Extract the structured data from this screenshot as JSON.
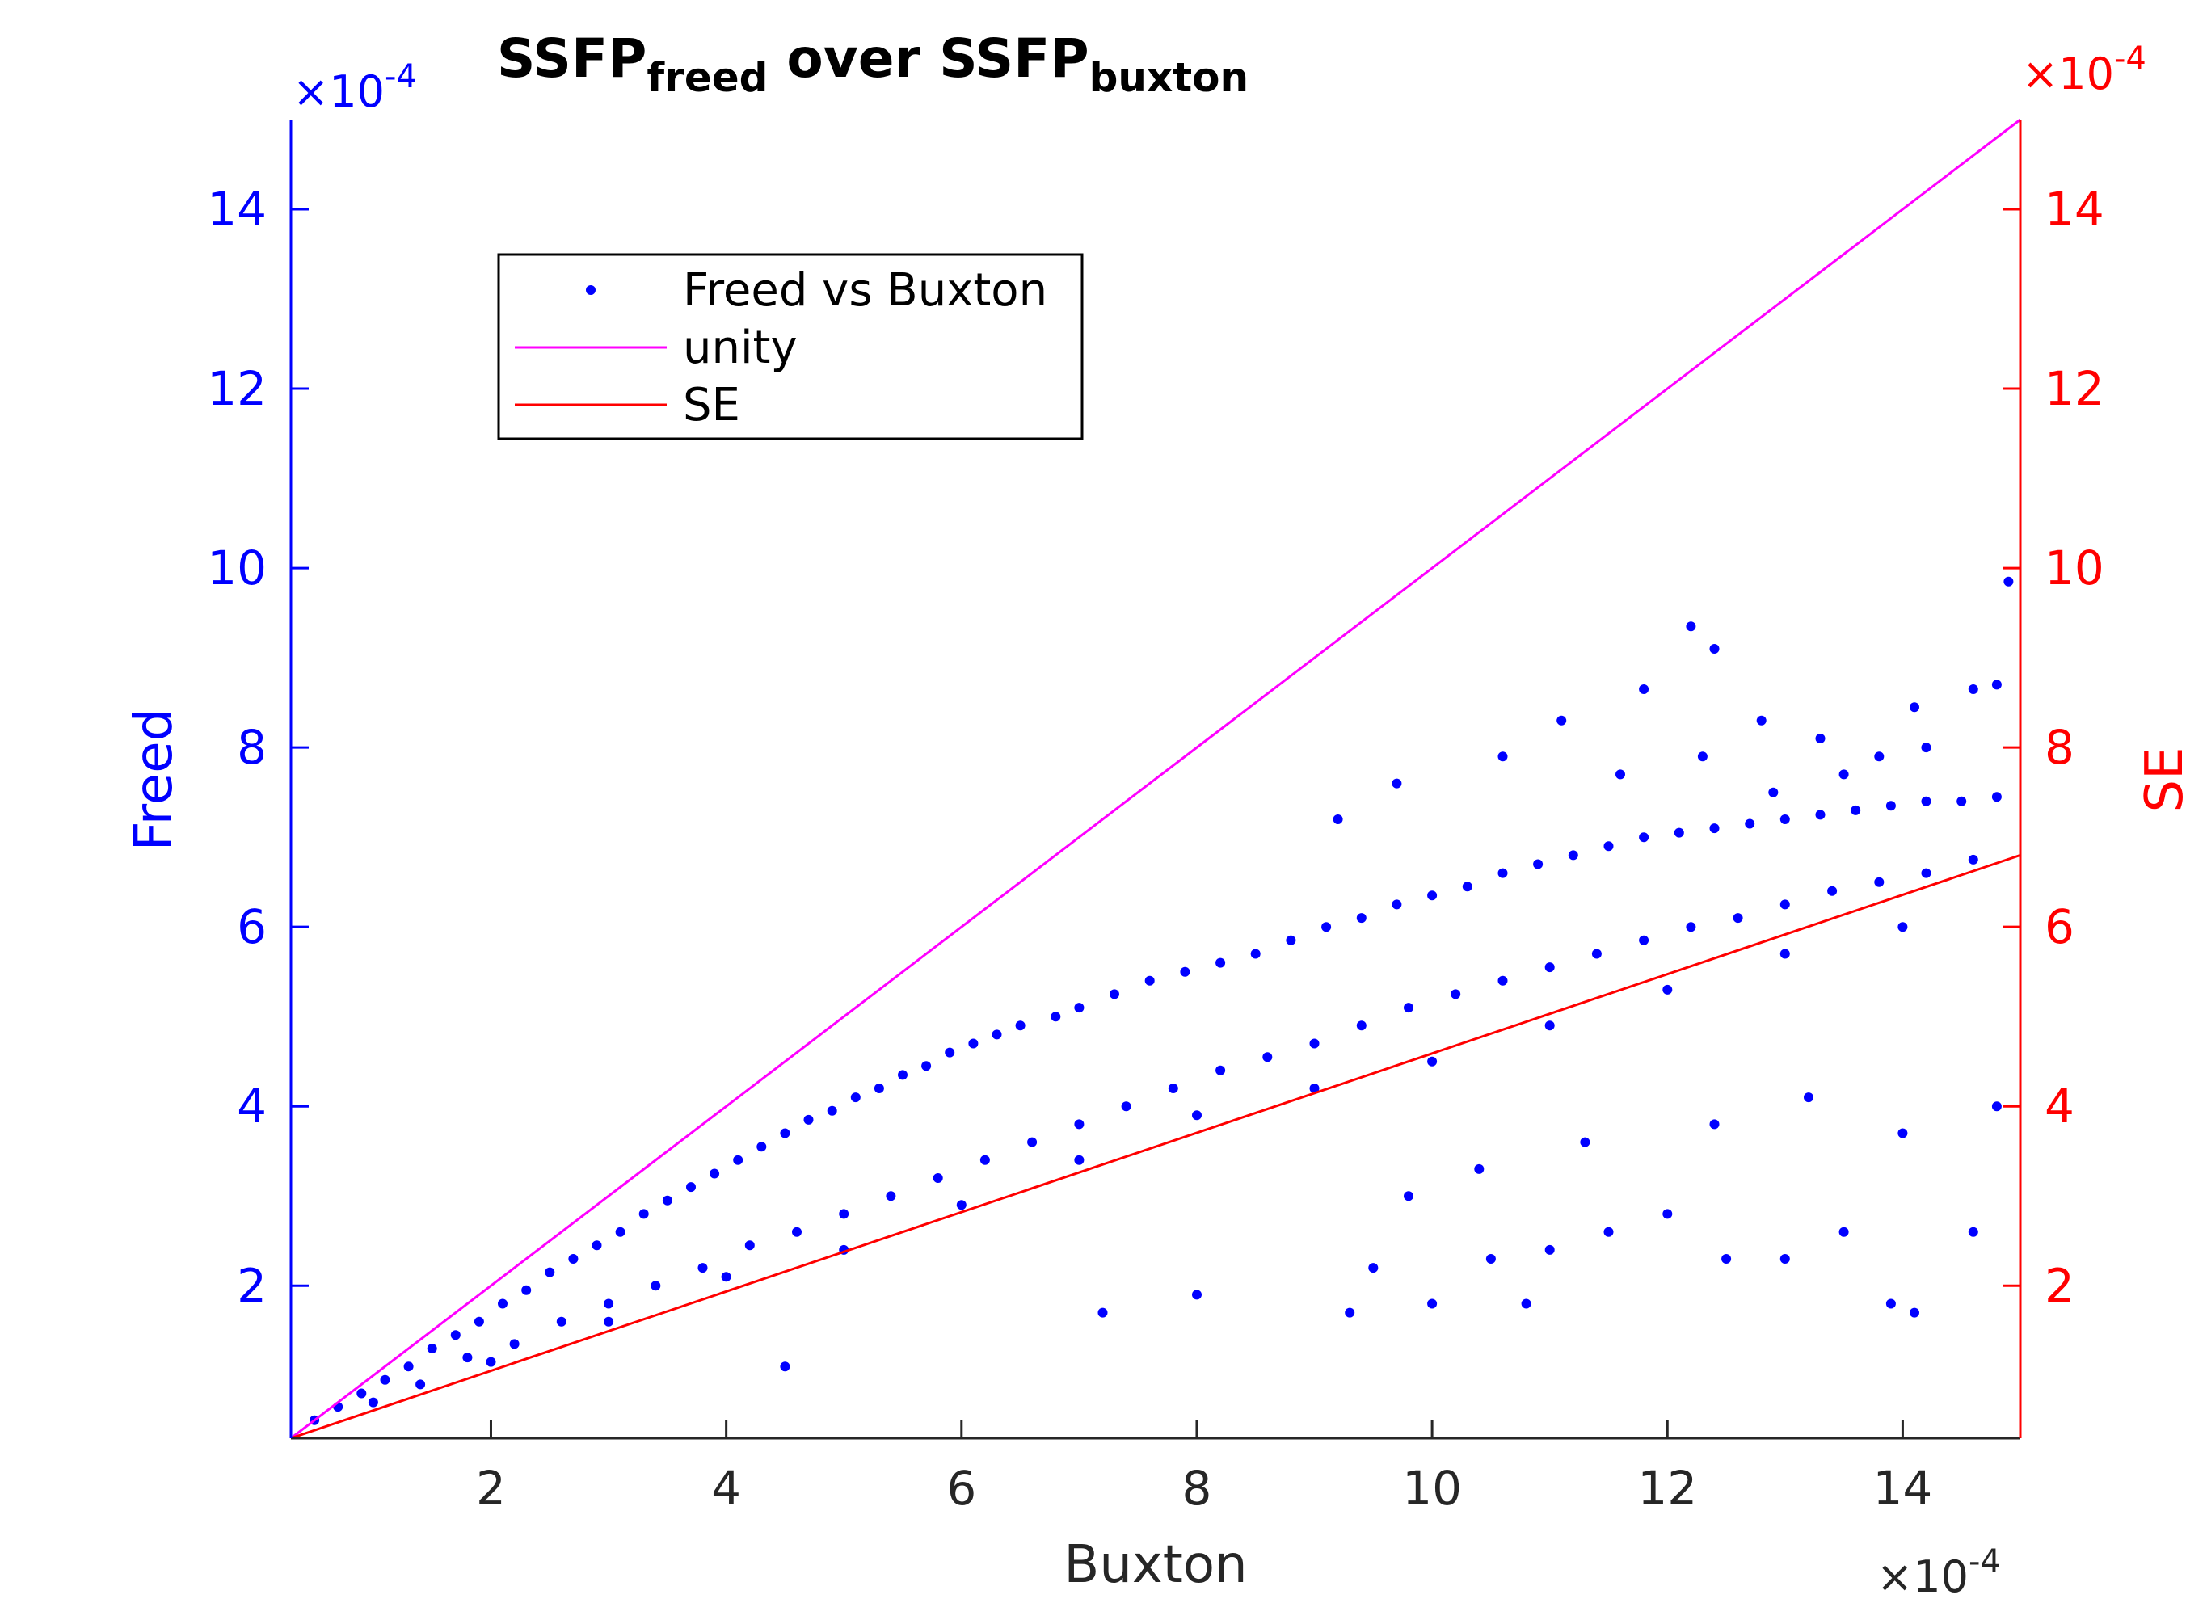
{
  "chart_data": {
    "type": "scatter",
    "title": {
      "parts": [
        {
          "text": "SSFP",
          "sub": false
        },
        {
          "text": "freed",
          "sub": true
        },
        {
          "text": " over SSFP",
          "sub": false
        },
        {
          "text": "buxton",
          "sub": true
        }
      ]
    },
    "xlabel": "Buxton",
    "ylabel_left": "Freed",
    "ylabel_right": "SE",
    "x_exponent": {
      "base": "×10",
      "exp": "-4"
    },
    "y_left_exponent": {
      "base": "×10",
      "exp": "-4"
    },
    "y_right_exponent": {
      "base": "×10",
      "exp": "-4"
    },
    "xlim": [
      0.3,
      15
    ],
    "ylim": [
      0.3,
      15
    ],
    "x_ticks": [
      2,
      4,
      6,
      8,
      10,
      12,
      14
    ],
    "x_tick_labels": [
      "2",
      "4",
      "6",
      "8",
      "10",
      "12",
      "14"
    ],
    "y_left_ticks": [
      2,
      4,
      6,
      8,
      10,
      12,
      14
    ],
    "y_left_tick_labels": [
      "2",
      "4",
      "6",
      "8",
      "10",
      "12",
      "14"
    ],
    "y_right_ticks": [
      2,
      4,
      6,
      8,
      10,
      12,
      14
    ],
    "y_right_tick_labels": [
      "2",
      "4",
      "6",
      "8",
      "10",
      "12",
      "14"
    ],
    "grid": false,
    "legend": {
      "placement": "upper-left",
      "entries": [
        {
          "label": "Freed vs Buxton",
          "kind": "marker",
          "color": "#0000ff"
        },
        {
          "label": "unity",
          "kind": "line",
          "color": "#ff00ff"
        },
        {
          "label": "SE",
          "kind": "line",
          "color": "#ff0000"
        }
      ]
    },
    "colors": {
      "left_axis": "#0000ff",
      "right_axis": "#ff0000",
      "bottom_axis": "#262626",
      "title": "#000000"
    },
    "series": [
      {
        "name": "Freed vs Buxton",
        "kind": "scatter",
        "color": "#0000ff",
        "points": [
          [
            0.5,
            0.5
          ],
          [
            0.7,
            0.65
          ],
          [
            0.9,
            0.8
          ],
          [
            1.1,
            0.95
          ],
          [
            1.3,
            1.1
          ],
          [
            1.5,
            1.3
          ],
          [
            1.7,
            1.45
          ],
          [
            1.9,
            1.6
          ],
          [
            2.1,
            1.8
          ],
          [
            2.3,
            1.95
          ],
          [
            2.5,
            2.15
          ],
          [
            2.7,
            2.3
          ],
          [
            2.9,
            2.45
          ],
          [
            3.1,
            2.6
          ],
          [
            3.3,
            2.8
          ],
          [
            3.5,
            2.95
          ],
          [
            3.7,
            3.1
          ],
          [
            3.9,
            3.25
          ],
          [
            4.1,
            3.4
          ],
          [
            4.3,
            3.55
          ],
          [
            4.5,
            3.7
          ],
          [
            4.7,
            3.85
          ],
          [
            4.9,
            3.95
          ],
          [
            5.1,
            4.1
          ],
          [
            5.3,
            4.2
          ],
          [
            5.5,
            4.35
          ],
          [
            5.7,
            4.45
          ],
          [
            5.9,
            4.6
          ],
          [
            6.1,
            4.7
          ],
          [
            6.3,
            4.8
          ],
          [
            6.5,
            4.9
          ],
          [
            6.8,
            5.0
          ],
          [
            7.0,
            5.1
          ],
          [
            7.3,
            5.25
          ],
          [
            7.6,
            5.4
          ],
          [
            7.9,
            5.5
          ],
          [
            8.2,
            5.6
          ],
          [
            8.5,
            5.7
          ],
          [
            8.8,
            5.85
          ],
          [
            9.1,
            6.0
          ],
          [
            9.4,
            6.1
          ],
          [
            9.7,
            6.25
          ],
          [
            10.0,
            6.35
          ],
          [
            10.3,
            6.45
          ],
          [
            10.6,
            6.6
          ],
          [
            10.9,
            6.7
          ],
          [
            11.2,
            6.8
          ],
          [
            11.5,
            6.9
          ],
          [
            11.8,
            7.0
          ],
          [
            12.1,
            7.05
          ],
          [
            12.4,
            7.1
          ],
          [
            12.7,
            7.15
          ],
          [
            13.0,
            7.2
          ],
          [
            13.3,
            7.25
          ],
          [
            13.6,
            7.3
          ],
          [
            13.9,
            7.35
          ],
          [
            14.2,
            7.4
          ],
          [
            14.5,
            7.4
          ],
          [
            14.8,
            7.45
          ],
          [
            1.0,
            0.7
          ],
          [
            1.4,
            0.9
          ],
          [
            1.8,
            1.2
          ],
          [
            2.2,
            1.35
          ],
          [
            2.6,
            1.6
          ],
          [
            3.0,
            1.8
          ],
          [
            3.4,
            2.0
          ],
          [
            3.8,
            2.2
          ],
          [
            4.2,
            2.45
          ],
          [
            4.6,
            2.6
          ],
          [
            5.0,
            2.8
          ],
          [
            5.4,
            3.0
          ],
          [
            5.8,
            3.2
          ],
          [
            6.2,
            3.4
          ],
          [
            6.6,
            3.6
          ],
          [
            7.0,
            3.8
          ],
          [
            7.4,
            4.0
          ],
          [
            7.8,
            4.2
          ],
          [
            8.2,
            4.4
          ],
          [
            8.6,
            4.55
          ],
          [
            9.0,
            4.7
          ],
          [
            9.4,
            4.9
          ],
          [
            9.8,
            5.1
          ],
          [
            10.2,
            5.25
          ],
          [
            10.6,
            5.4
          ],
          [
            11.0,
            5.55
          ],
          [
            11.4,
            5.7
          ],
          [
            11.8,
            5.85
          ],
          [
            12.2,
            6.0
          ],
          [
            12.6,
            6.1
          ],
          [
            13.0,
            6.25
          ],
          [
            13.4,
            6.4
          ],
          [
            13.8,
            6.5
          ],
          [
            14.2,
            6.6
          ],
          [
            14.6,
            6.75
          ],
          [
            2.0,
            1.15
          ],
          [
            3.0,
            1.6
          ],
          [
            4.0,
            2.1
          ],
          [
            4.5,
            1.1
          ],
          [
            5.0,
            2.4
          ],
          [
            6.0,
            2.9
          ],
          [
            7.0,
            3.4
          ],
          [
            8.0,
            3.9
          ],
          [
            9.0,
            4.2
          ],
          [
            10.0,
            4.5
          ],
          [
            11.0,
            4.9
          ],
          [
            12.0,
            5.3
          ],
          [
            13.0,
            5.7
          ],
          [
            14.0,
            6.0
          ],
          [
            7.2,
            1.7
          ],
          [
            8.0,
            1.9
          ],
          [
            9.3,
            1.7
          ],
          [
            9.5,
            2.2
          ],
          [
            10.0,
            1.8
          ],
          [
            10.5,
            2.3
          ],
          [
            10.8,
            1.8
          ],
          [
            11.0,
            2.4
          ],
          [
            11.5,
            2.6
          ],
          [
            12.0,
            2.8
          ],
          [
            12.5,
            2.3
          ],
          [
            13.0,
            2.3
          ],
          [
            13.5,
            2.6
          ],
          [
            13.9,
            1.8
          ],
          [
            14.1,
            1.7
          ],
          [
            14.6,
            2.6
          ],
          [
            9.8,
            3.0
          ],
          [
            10.4,
            3.3
          ],
          [
            11.3,
            3.6
          ],
          [
            12.4,
            3.8
          ],
          [
            13.2,
            4.1
          ],
          [
            14.0,
            3.7
          ],
          [
            14.8,
            4.0
          ],
          [
            12.2,
            9.35
          ],
          [
            12.4,
            9.1
          ],
          [
            11.8,
            8.65
          ],
          [
            12.8,
            8.3
          ],
          [
            14.1,
            8.45
          ],
          [
            14.6,
            8.65
          ],
          [
            14.9,
            9.85
          ],
          [
            11.1,
            8.3
          ],
          [
            10.6,
            7.9
          ],
          [
            9.7,
            7.6
          ],
          [
            9.2,
            7.2
          ],
          [
            13.3,
            8.1
          ],
          [
            13.8,
            7.9
          ],
          [
            14.2,
            8.0
          ],
          [
            14.8,
            8.7
          ],
          [
            12.3,
            7.9
          ],
          [
            11.6,
            7.7
          ],
          [
            12.9,
            7.5
          ],
          [
            13.5,
            7.7
          ]
        ]
      },
      {
        "name": "unity",
        "kind": "line",
        "color": "#ff00ff",
        "x": [
          0.3,
          15
        ],
        "y": [
          0.3,
          15
        ]
      },
      {
        "name": "SE",
        "kind": "line",
        "color": "#ff0000",
        "x": [
          0.3,
          15
        ],
        "y": [
          0.3,
          6.8
        ]
      }
    ]
  }
}
